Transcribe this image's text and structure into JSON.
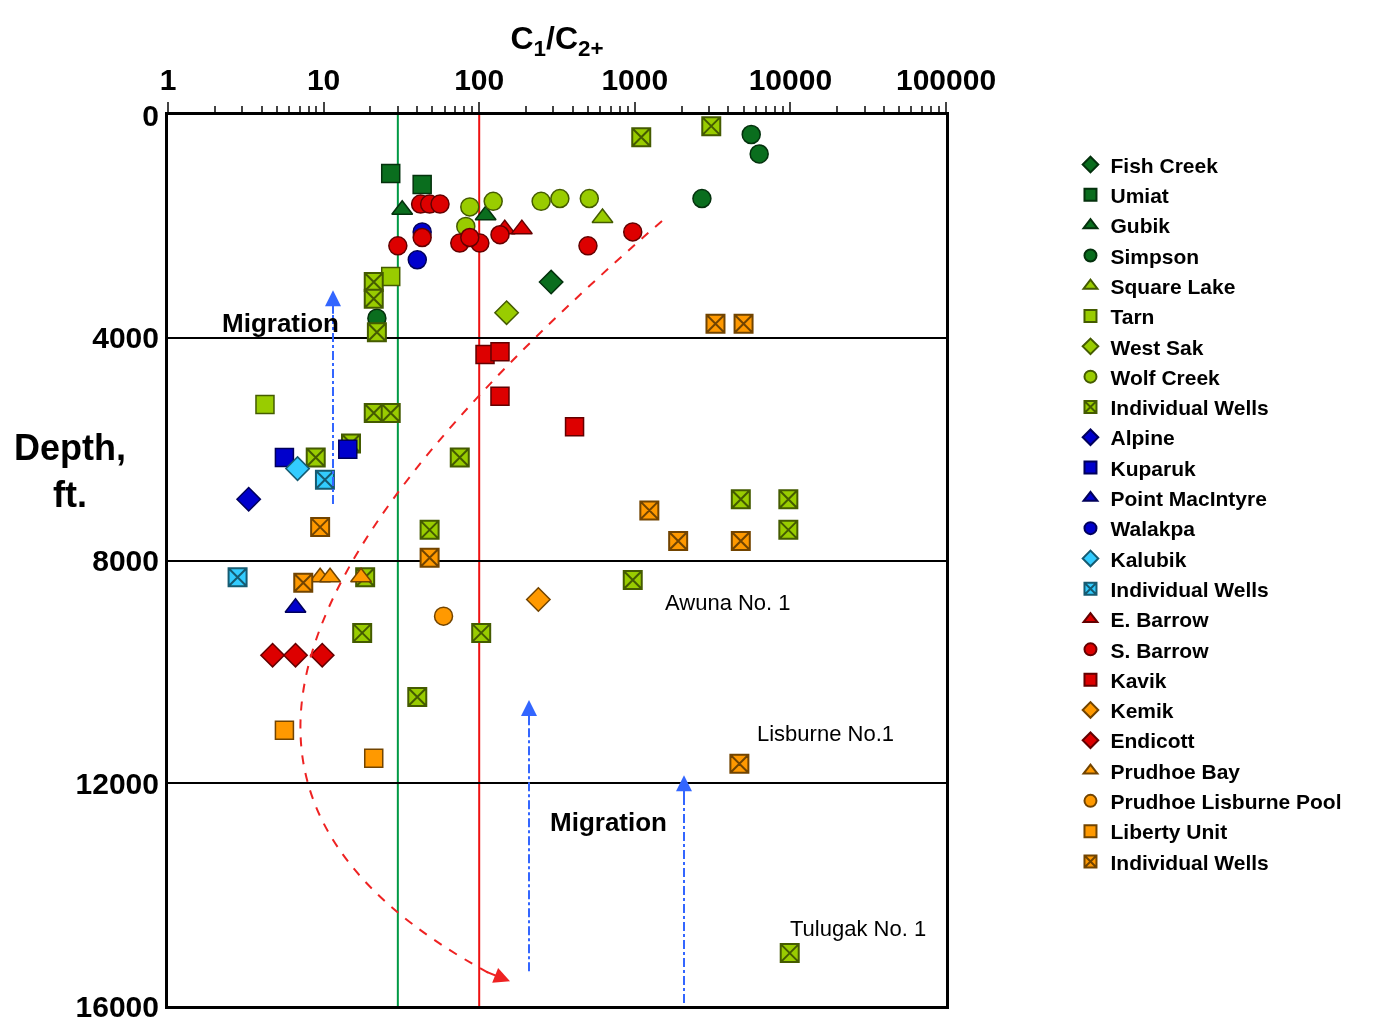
{
  "chart_data": {
    "type": "scatter",
    "xlabel": "C$_{1}$/C$_{2+}$",
    "ylabel": "Depth,\nft.",
    "log": "x",
    "xlim": [
      1,
      100000
    ],
    "xticks": [
      1,
      10,
      100,
      1000,
      10000,
      100000
    ],
    "ylim": [
      16000,
      0
    ],
    "yticks": [
      0,
      4000,
      8000,
      12000,
      16000
    ],
    "grid": "y",
    "legend": "right",
    "ref_lines": [
      {
        "axis": "x",
        "value": 30,
        "label": null,
        "color": "#009944"
      },
      {
        "axis": "x",
        "value": 100,
        "label": null,
        "color": "#ee1111"
      }
    ],
    "annotations": [
      "Migration",
      "Migration",
      "Awuna No. 1",
      "Lisburne No.1",
      "Tulugak No. 1"
    ],
    "series": [
      {
        "name": "Fish Creek",
        "color": "#0a6e1e",
        "marker": "diamond",
        "x": [
          290
        ],
        "values": [
          3000
        ]
      },
      {
        "name": "Umiat",
        "color": "#0a6e1e",
        "marker": "square",
        "x": [
          27,
          43
        ],
        "values": [
          1050,
          1250
        ]
      },
      {
        "name": "Gubik",
        "color": "#0a6e1e",
        "marker": "triangle",
        "x": [
          32,
          110
        ],
        "values": [
          1700,
          1800
        ]
      },
      {
        "name": "Simpson",
        "color": "#0a6e1e",
        "marker": "circle",
        "x": [
          5600,
          6300,
          2700,
          22
        ],
        "values": [
          350,
          700,
          1500,
          3650
        ]
      },
      {
        "name": "Square Lake",
        "color": "#99cc00",
        "marker": "triangle",
        "x": [
          620
        ],
        "values": [
          1850
        ]
      },
      {
        "name": "Tarn",
        "color": "#99cc00",
        "marker": "square",
        "x": [
          4.2,
          27
        ],
        "values": [
          5200,
          2900
        ]
      },
      {
        "name": "West Sak",
        "color": "#99cc00",
        "marker": "diamond",
        "x": [
          150
        ],
        "values": [
          3550
        ]
      },
      {
        "name": "Wolf Creek",
        "color": "#99cc00",
        "marker": "circle",
        "x": [
          87,
          123,
          250,
          330,
          510,
          82
        ],
        "values": [
          1650,
          1550,
          1550,
          1500,
          1500,
          2000
        ]
      },
      {
        "name": "Individual Wells",
        "color": "#99cc00",
        "marker": "cross",
        "x": [
          1100,
          3100,
          21,
          21,
          22,
          21,
          27,
          8.9,
          15,
          75,
          48,
          18.5,
          970,
          17.7,
          103,
          40,
          4800,
          9700,
          9700,
          9900
        ],
        "values": [
          400,
          200,
          3000,
          3300,
          3900,
          5350,
          5350,
          6150,
          5900,
          6150,
          7450,
          8300,
          8350,
          9300,
          9300,
          10450,
          6900,
          6900,
          7450,
          15050
        ]
      },
      {
        "name": "Alpine",
        "color": "#0000cc",
        "marker": "diamond",
        "x": [
          3.3
        ],
        "values": [
          6900
        ]
      },
      {
        "name": "Kuparuk",
        "color": "#0000cc",
        "marker": "square",
        "x": [
          5.6,
          14.3
        ],
        "values": [
          6150,
          6000
        ]
      },
      {
        "name": "Point MacIntyre",
        "color": "#0000cc",
        "marker": "triangle",
        "x": [
          6.6
        ],
        "values": [
          8850
        ]
      },
      {
        "name": "Walakpa",
        "color": "#0000cc",
        "marker": "circle",
        "x": [
          43,
          40
        ],
        "values": [
          2100,
          2600
        ]
      },
      {
        "name": "Kalubik",
        "color": "#33ccff",
        "marker": "diamond",
        "x": [
          6.8
        ],
        "values": [
          6350
        ]
      },
      {
        "name": "Individual Wells",
        "color": "#33ccff",
        "marker": "cross",
        "x": [
          10.2,
          2.8
        ],
        "values": [
          6550,
          8300
        ]
      },
      {
        "name": "E. Barrow",
        "color": "#dd0000",
        "marker": "triangle",
        "x": [
          146,
          188
        ],
        "values": [
          2050,
          2050
        ]
      },
      {
        "name": "S. Barrow",
        "color": "#dd0000",
        "marker": "circle",
        "x": [
          30,
          43,
          42,
          48,
          56,
          75,
          101,
          87,
          136,
          500,
          970
        ],
        "values": [
          2350,
          2200,
          1600,
          1600,
          1600,
          2300,
          2300,
          2200,
          2150,
          2350,
          2100
        ]
      },
      {
        "name": "Kavik",
        "color": "#dd0000",
        "marker": "square",
        "x": [
          109,
          136,
          136,
          410
        ],
        "values": [
          4300,
          4250,
          5050,
          5600
        ]
      },
      {
        "name": "Kemik",
        "color": "#ff9900",
        "marker": "diamond",
        "x": [
          240
        ],
        "values": [
          8700
        ]
      },
      {
        "name": "Endicott",
        "color": "#dd0000",
        "marker": "diamond",
        "x": [
          4.7,
          6.6,
          9.8
        ],
        "values": [
          9700,
          9700,
          9700
        ]
      },
      {
        "name": "Prudhoe Bay",
        "color": "#ff9900",
        "marker": "triangle",
        "x": [
          9.5,
          11,
          17.4
        ],
        "values": [
          8300,
          8300,
          8300
        ]
      },
      {
        "name": "Prudhoe Lisburne Pool",
        "color": "#ff9900",
        "marker": "circle",
        "x": [
          59
        ],
        "values": [
          9000
        ]
      },
      {
        "name": "Liberty Unit",
        "color": "#ff9900",
        "marker": "square",
        "x": [
          5.6,
          21
        ],
        "values": [
          11050,
          11550
        ]
      },
      {
        "name": "Individual Wells",
        "color": "#ff9900",
        "marker": "cross",
        "x": [
          9.5,
          7.4,
          48,
          1240,
          1900,
          4800,
          3300,
          5000,
          4700
        ],
        "values": [
          7400,
          8400,
          7950,
          7100,
          7650,
          7650,
          3750,
          3750,
          11650
        ]
      }
    ]
  }
}
